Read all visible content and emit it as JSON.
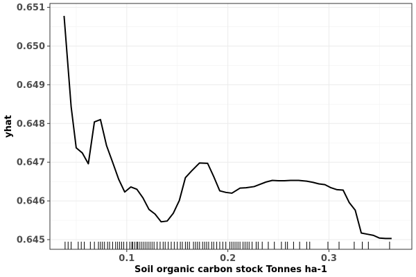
{
  "chart_data": {
    "type": "line",
    "title": "",
    "xlabel": "Soil organic carbon stock Tonnes ha-1",
    "ylabel": "yhat",
    "xlim": [
      0.024,
      0.382
    ],
    "ylim": [
      0.64475,
      0.6511
    ],
    "xticks": [
      0.1,
      0.2,
      0.3
    ],
    "xtick_labels": [
      "0.1",
      "0.2",
      "0.3"
    ],
    "yticks": [
      0.645,
      0.646,
      0.647,
      0.648,
      0.649,
      0.65,
      0.651
    ],
    "ytick_labels": [
      "0.645",
      "0.646",
      "0.647",
      "0.648",
      "0.649",
      "0.650",
      "0.651"
    ],
    "grid": true,
    "line_color": "#000000",
    "series": [
      {
        "x": [
          0.038,
          0.045,
          0.05,
          0.056,
          0.062,
          0.068,
          0.074,
          0.08,
          0.086,
          0.092,
          0.098,
          0.104,
          0.11,
          0.116,
          0.122,
          0.128,
          0.134,
          0.14,
          0.146,
          0.152,
          0.158,
          0.164,
          0.172,
          0.18,
          0.186,
          0.192,
          0.198,
          0.204,
          0.212,
          0.218,
          0.226,
          0.232,
          0.238,
          0.244,
          0.25,
          0.256,
          0.262,
          0.27,
          0.278,
          0.284,
          0.29,
          0.296,
          0.302,
          0.308,
          0.314,
          0.32,
          0.326,
          0.332,
          0.338,
          0.344,
          0.35,
          0.356,
          0.362
        ],
        "y": [
          0.65078,
          0.64843,
          0.64737,
          0.64724,
          0.64696,
          0.64804,
          0.6481,
          0.64743,
          0.647,
          0.64656,
          0.64623,
          0.64636,
          0.6463,
          0.64608,
          0.64578,
          0.64566,
          0.64546,
          0.64548,
          0.64568,
          0.64601,
          0.6466,
          0.64677,
          0.64698,
          0.64697,
          0.64663,
          0.64626,
          0.64622,
          0.6462,
          0.64633,
          0.64634,
          0.64637,
          0.64643,
          0.64649,
          0.64653,
          0.64652,
          0.64652,
          0.64653,
          0.64653,
          0.64651,
          0.64648,
          0.64644,
          0.64642,
          0.64634,
          0.64629,
          0.64628,
          0.64596,
          0.64576,
          0.64517,
          0.64514,
          0.64511,
          0.64504,
          0.64503,
          0.64503
        ]
      }
    ],
    "rug_x": [
      0.039,
      0.042,
      0.045,
      0.052,
      0.055,
      0.058,
      0.064,
      0.068,
      0.072,
      0.074,
      0.076,
      0.078,
      0.081,
      0.083,
      0.086,
      0.089,
      0.091,
      0.093,
      0.095,
      0.097,
      0.1,
      0.103,
      0.105,
      0.106,
      0.108,
      0.11,
      0.111,
      0.113,
      0.115,
      0.117,
      0.119,
      0.121,
      0.123,
      0.125,
      0.127,
      0.13,
      0.133,
      0.136,
      0.138,
      0.141,
      0.144,
      0.147,
      0.15,
      0.153,
      0.155,
      0.158,
      0.16,
      0.162,
      0.166,
      0.168,
      0.17,
      0.172,
      0.175,
      0.177,
      0.179,
      0.181,
      0.184,
      0.186,
      0.189,
      0.192,
      0.195,
      0.198,
      0.202,
      0.204,
      0.206,
      0.208,
      0.21,
      0.212,
      0.215,
      0.217,
      0.219,
      0.221,
      0.224,
      0.228,
      0.23,
      0.234,
      0.24,
      0.246,
      0.253,
      0.257,
      0.259,
      0.265,
      0.271,
      0.278,
      0.281,
      0.299,
      0.31,
      0.325,
      0.333,
      0.339,
      0.36
    ]
  }
}
